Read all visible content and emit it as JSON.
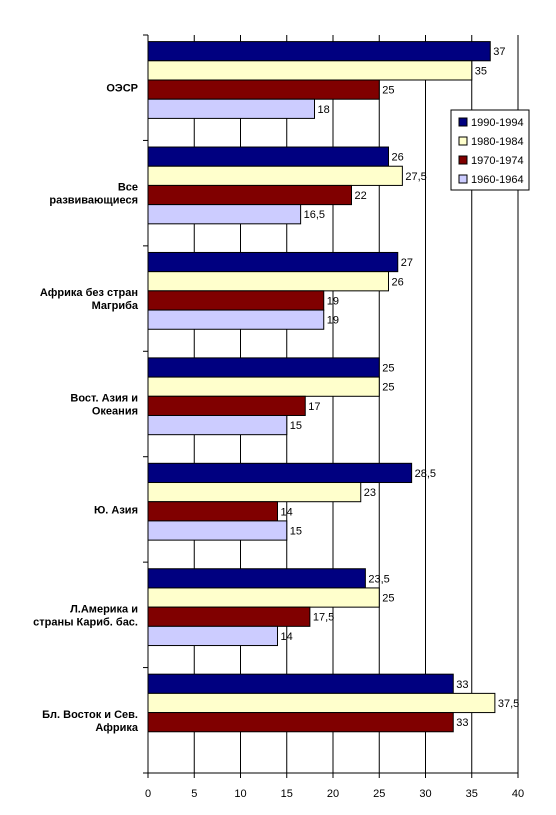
{
  "chart_data": {
    "type": "bar",
    "orientation": "horizontal",
    "xlim": [
      0,
      40
    ],
    "xticks": [
      0,
      5,
      10,
      15,
      20,
      25,
      30,
      35,
      40
    ],
    "grid": true,
    "legend_position": "right",
    "categories": [
      {
        "lines": [
          "ОЭСР"
        ]
      },
      {
        "lines": [
          "Все",
          "развивающиеся"
        ]
      },
      {
        "lines": [
          "Африка без стран",
          "Магриба"
        ]
      },
      {
        "lines": [
          "Вост. Азия и",
          "Океания"
        ]
      },
      {
        "lines": [
          "Ю. Азия"
        ]
      },
      {
        "lines": [
          "Л.Америка и",
          "страны Кариб. бас."
        ]
      },
      {
        "lines": [
          "Бл. Восток и Сев.",
          "Африка"
        ]
      }
    ],
    "series": [
      {
        "name": "1990-1994",
        "color": "#000080",
        "values": [
          37,
          26,
          27,
          25,
          28.5,
          23.5,
          33
        ],
        "labels": [
          "37",
          "26",
          "27",
          "25",
          "28,5",
          "23,5",
          "33"
        ]
      },
      {
        "name": "1980-1984",
        "color": "#FFFFCC",
        "values": [
          35,
          27.5,
          26,
          25,
          23,
          25,
          37.5
        ],
        "labels": [
          "35",
          "27,5",
          "26",
          "25",
          "23",
          "25",
          "37,5"
        ]
      },
      {
        "name": "1970-1974",
        "color": "#800000",
        "values": [
          25,
          22,
          19,
          17,
          14,
          17.5,
          33
        ],
        "labels": [
          "25",
          "22",
          "19",
          "17",
          "14",
          "17,5",
          "33"
        ]
      },
      {
        "name": "1960-1964",
        "color": "#CCCCFF",
        "values": [
          18,
          16.5,
          19,
          15,
          15,
          14,
          null
        ],
        "labels": [
          "18",
          "16,5",
          "19",
          "15",
          "15",
          "14",
          ""
        ]
      }
    ]
  }
}
